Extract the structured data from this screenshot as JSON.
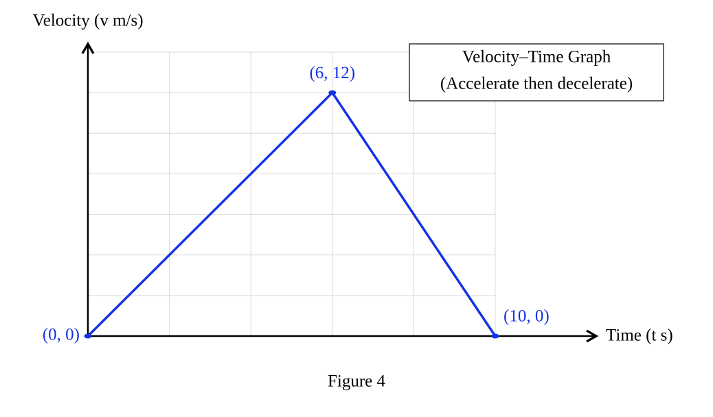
{
  "chart_data": {
    "type": "line",
    "title": "Velocity–Time Graph",
    "subtitle": "(Accelerate then decelerate)",
    "x_label": "Time (t s)",
    "y_label": "Velocity (v m/s)",
    "caption": "Figure 4",
    "x": [
      0,
      6,
      10
    ],
    "series": [
      {
        "values": [
          0,
          12,
          0
        ],
        "color": "#1432e6"
      }
    ],
    "point_labels": [
      "(0, 0)",
      "(6, 12)",
      "(10, 0)"
    ],
    "xlim": [
      0,
      10
    ],
    "ylim": [
      0,
      14
    ],
    "xticks": [
      0,
      2,
      4,
      6,
      8,
      10
    ],
    "yticks": [
      0,
      2,
      4,
      6,
      8,
      10,
      12,
      14
    ],
    "grid": true
  }
}
